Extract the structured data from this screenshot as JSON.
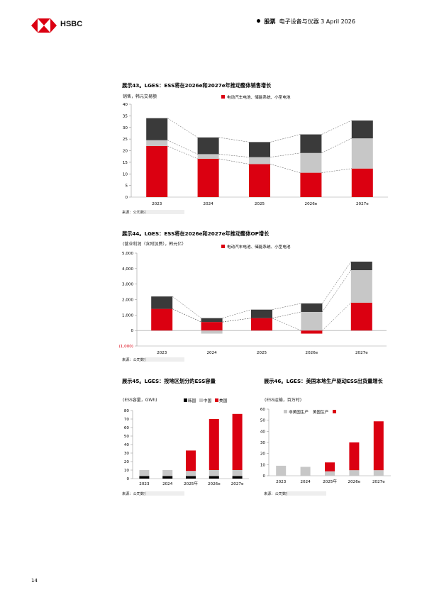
{
  "header": {
    "brand": "HSBC",
    "section": "股票",
    "subtitle": "电子设备与仪器 3 April 2026"
  },
  "colors": {
    "red": "#db0011",
    "gray": "#c7c7c7",
    "dark": "#3a3a3a",
    "black": "#000000"
  },
  "charts": {
    "c43": {
      "title": "展示43。LGES：ESS将在2026e和2027e年推动整体销售增长",
      "unit": "销售，韩元交易额",
      "legend": "电动汽车电池、储能系统、小型电池",
      "source": "来源：公司数据，汇丰预估",
      "chart_data": {
        "type": "bar",
        "stacked": true,
        "categories": [
          "2023",
          "2024",
          "2025",
          "2026e",
          "2027e"
        ],
        "series": [
          {
            "color": "#db0011",
            "values": [
              22,
              16.5,
              14.2,
              10.5,
              12.3
            ]
          },
          {
            "color": "#c7c7c7",
            "values": [
              2.5,
              2.0,
              3.0,
              8.5,
              13
            ]
          },
          {
            "color": "#3a3a3a",
            "values": [
              9.5,
              7.2,
              6.5,
              8.0,
              7.7
            ]
          }
        ],
        "ylim": [
          0,
          40
        ],
        "yticks": [
          "0",
          "5",
          "10",
          "15",
          "20",
          "25",
          "30",
          "35",
          "40"
        ]
      }
    },
    "c44": {
      "title": "展示44。LGES：ESS将在2026e和2027e年推动整体OP增长",
      "unit": "(营业利润（含附加费），韩元亿）",
      "legend": "电动汽车电池、储能系统、小型电池",
      "source": "来源：公司数据，汇丰预估",
      "chart_data": {
        "type": "bar",
        "stacked": true,
        "categories": [
          "2023",
          "2024",
          "2025",
          "2026e",
          "2027e"
        ],
        "series": [
          {
            "color": "#db0011",
            "values": [
              1400,
              550,
              800,
              -200,
              1800
            ]
          },
          {
            "color": "#c7c7c7",
            "values": [
              0,
              -200,
              0,
              1200,
              2100
            ]
          },
          {
            "color": "#3a3a3a",
            "values": [
              800,
              250,
              550,
              550,
              550
            ]
          }
        ],
        "ylim": [
          -1000,
          5000
        ],
        "yticks": [
          "(1,000)",
          "0",
          "1,000",
          "2,000",
          "3,000",
          "4,000",
          "5,000"
        ]
      }
    },
    "c45": {
      "title": "展示45。LGES：按地区划分的ESS容量",
      "unit": "(ESS容量，GWh)",
      "legend": [
        "韩国",
        "中国",
        "美国"
      ],
      "source": "来源：公司数据，汇丰预估",
      "chart_data": {
        "type": "bar",
        "stacked": true,
        "categories": [
          "2023",
          "2024",
          "2025年",
          "2026e",
          "2027e"
        ],
        "series": [
          {
            "name": "韩国",
            "color": "#000000",
            "values": [
              3,
              3,
              3,
              3,
              3
            ]
          },
          {
            "name": "中国",
            "color": "#c7c7c7",
            "values": [
              7,
              7,
              6,
              7,
              7
            ]
          },
          {
            "name": "美国",
            "color": "#db0011",
            "values": [
              0,
              0,
              24,
              60,
              66
            ]
          }
        ],
        "ylim": [
          0,
          80
        ],
        "yticks": [
          "0",
          "10",
          "20",
          "30",
          "40",
          "50",
          "60",
          "70",
          "80"
        ]
      }
    },
    "c46": {
      "title": "展示46。LGES：美国本地生产驱动ESS出货量增长",
      "unit": "(ESS运输，百万时)",
      "legend": [
        "非美国生产",
        "美国生产"
      ],
      "source": "来源：公司数据，汇丰预估",
      "chart_data": {
        "type": "bar",
        "stacked": true,
        "categories": [
          "2023",
          "2024",
          "2025年",
          "2026e",
          "2027e"
        ],
        "series": [
          {
            "name": "非美国生产",
            "color": "#c7c7c7",
            "values": [
              9,
              8,
              4,
              5,
              5
            ]
          },
          {
            "name": "美国生产",
            "color": "#db0011",
            "values": [
              0,
              0,
              8,
              25,
              44
            ]
          }
        ],
        "ylim": [
          0,
          60
        ],
        "yticks": [
          "0",
          "10",
          "20",
          "30",
          "40",
          "50",
          "60"
        ]
      }
    }
  },
  "page": {
    "number": "14"
  }
}
